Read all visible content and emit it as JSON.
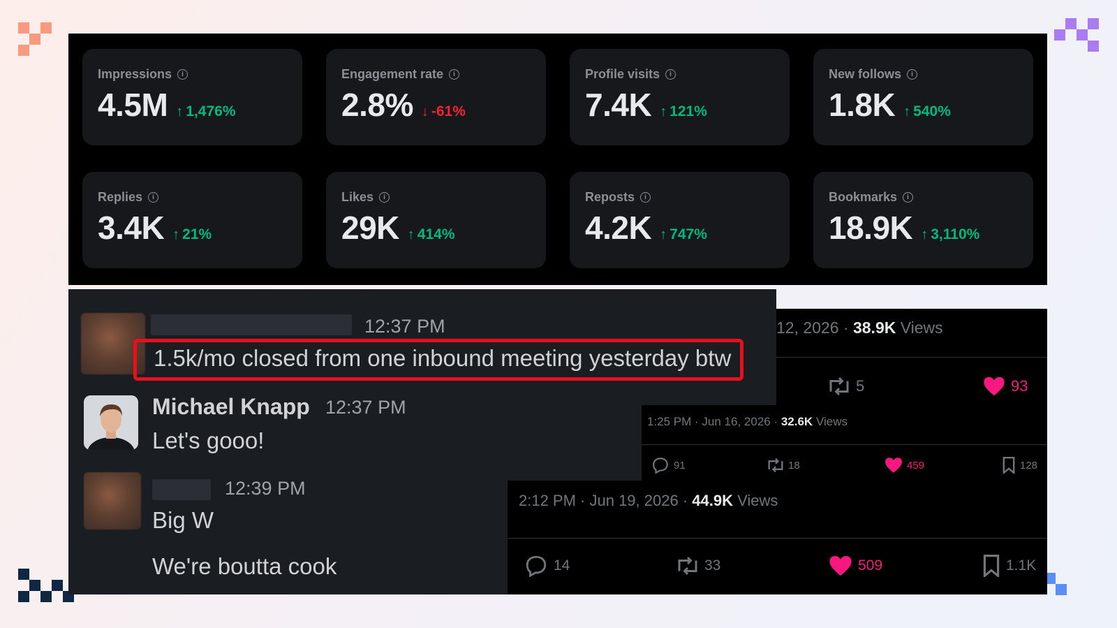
{
  "colors": {
    "up": "#00ba7c",
    "down": "#f4212e",
    "like": "#f91880",
    "highlight": "#e8101a"
  },
  "stats": [
    {
      "label": "Impressions",
      "value": "4.5M",
      "change": "1,476%",
      "direction": "up"
    },
    {
      "label": "Engagement rate",
      "value": "2.8%",
      "change": "-61%",
      "direction": "down"
    },
    {
      "label": "Profile visits",
      "value": "7.4K",
      "change": "121%",
      "direction": "up"
    },
    {
      "label": "New follows",
      "value": "1.8K",
      "change": "540%",
      "direction": "up"
    },
    {
      "label": "Replies",
      "value": "3.4K",
      "change": "21%",
      "direction": "up"
    },
    {
      "label": "Likes",
      "value": "29K",
      "change": "414%",
      "direction": "up"
    },
    {
      "label": "Reposts",
      "value": "4.2K",
      "change": "747%",
      "direction": "up"
    },
    {
      "label": "Bookmarks",
      "value": "18.9K",
      "change": "3,110%",
      "direction": "up"
    }
  ],
  "chat": {
    "msg1": {
      "time": "12:37 PM",
      "text": "1.5k/mo closed from one inbound meeting yesterday btw"
    },
    "msg2": {
      "sender": "Michael Knapp",
      "time": "12:37 PM",
      "text": "Let's gooo!"
    },
    "msg3": {
      "time": "12:39 PM",
      "text1": "Big W",
      "text2": "We're boutta cook"
    }
  },
  "tweets": {
    "t1": {
      "date": "12, 2026 · ",
      "views": "38.9K",
      "views_label": " Views",
      "reposts": "5",
      "likes": "93"
    },
    "t2": {
      "date": "1:25 PM · Jun 16, 2026 · ",
      "views": "32.6K",
      "views_label": " Views",
      "replies": "91",
      "reposts": "18",
      "likes": "459",
      "bookmarks": "128"
    },
    "t3": {
      "date": "2:12 PM · Jun 19, 2026 · ",
      "views": "44.9K",
      "views_label": " Views",
      "replies": "14",
      "reposts": "33",
      "likes": "509",
      "bookmarks": "1.1K"
    }
  }
}
